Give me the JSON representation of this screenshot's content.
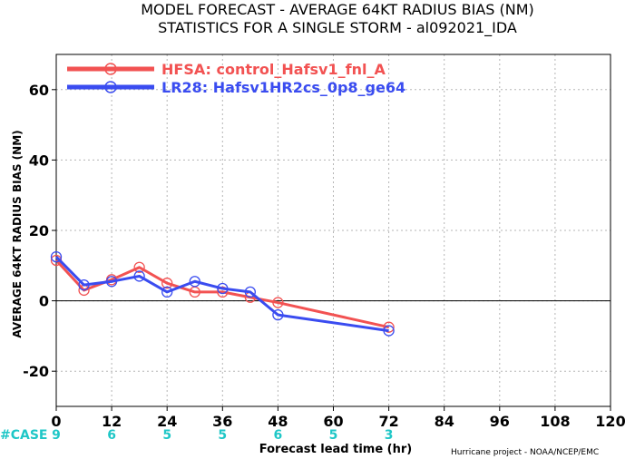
{
  "title_line1": "MODEL FORECAST - AVERAGE 64KT RADIUS BIAS (NM)",
  "title_line2": "STATISTICS FOR A SINGLE STORM - al092021_IDA",
  "footer": "Hurricane project - NOAA/NCEP/EMC",
  "case_label": "#CASE",
  "case_counts": [
    "9",
    "6",
    "5",
    "5",
    "6",
    "5",
    "3"
  ],
  "case_x": [
    0,
    12,
    24,
    36,
    48,
    60,
    72
  ],
  "colors": {
    "HFSA": "#f25252",
    "LR28": "#3a4cf0",
    "case": "#1fc7c7"
  },
  "chart_data": {
    "type": "line",
    "xlabel": "Forecast lead time (hr)",
    "ylabel": "AVERAGE 64KT RADIUS BIAS (NM)",
    "xlim": [
      0,
      120
    ],
    "ylim": [
      -30,
      70
    ],
    "xticks": [
      0,
      12,
      24,
      36,
      48,
      60,
      72,
      84,
      96,
      108,
      120
    ],
    "yticks": [
      -20,
      0,
      20,
      40,
      60
    ],
    "grid": true,
    "legend_position": "top-left",
    "series": [
      {
        "name": "HFSA: control_Hafsv1_fnl_A",
        "color": "#f25252",
        "x": [
          0,
          6,
          12,
          18,
          24,
          30,
          36,
          42,
          48,
          72
        ],
        "y": [
          11.5,
          3,
          6,
          9.5,
          5,
          2.5,
          2.5,
          1,
          -0.5,
          -7.5
        ]
      },
      {
        "name": "LR28: Hafsv1HR2cs_0p8_ge64",
        "color": "#3a4cf0",
        "x": [
          0,
          6,
          12,
          18,
          24,
          30,
          36,
          42,
          48,
          72
        ],
        "y": [
          12.5,
          4.5,
          5.5,
          7,
          2.5,
          5.5,
          3.5,
          2.5,
          -4,
          -8.5
        ]
      }
    ]
  }
}
